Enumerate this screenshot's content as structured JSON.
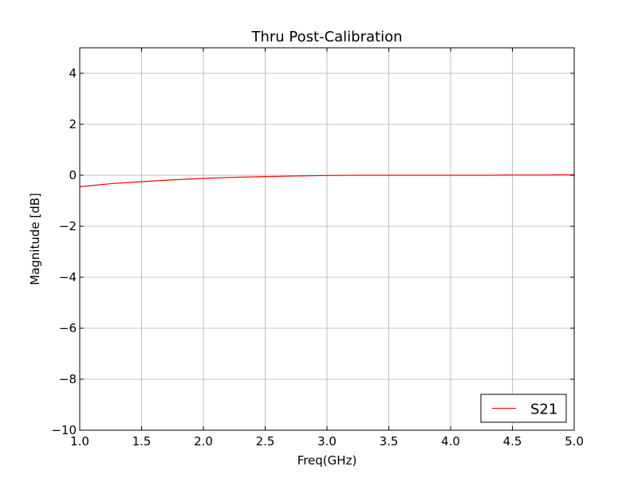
{
  "chart_data": {
    "type": "line",
    "title": "Thru Post-Calibration",
    "xlabel": "Freq(GHz)",
    "ylabel": "Magnitude [dB]",
    "xlim": [
      1.0,
      5.0
    ],
    "ylim": [
      -10,
      5
    ],
    "x_ticks": [
      1.0,
      1.5,
      2.0,
      2.5,
      3.0,
      3.5,
      4.0,
      4.5,
      5.0
    ],
    "x_tick_labels": [
      "1.0",
      "1.5",
      "2.0",
      "2.5",
      "3.0",
      "3.5",
      "4.0",
      "4.5",
      "5.0"
    ],
    "y_ticks": [
      -10,
      -8,
      -6,
      -4,
      -2,
      0,
      2,
      4
    ],
    "y_tick_labels": [
      "−10",
      "−8",
      "−6",
      "−4",
      "−2",
      "0",
      "2",
      "4"
    ],
    "grid": true,
    "legend_position": "bottom-right",
    "series": [
      {
        "name": "S21",
        "color": "#ff0000",
        "x": [
          1.0,
          1.25,
          1.5,
          1.75,
          2.0,
          2.25,
          2.5,
          2.75,
          3.0,
          3.25,
          3.5,
          3.75,
          4.0,
          4.25,
          4.5,
          4.75,
          5.0
        ],
        "y": [
          -0.45,
          -0.33,
          -0.25,
          -0.18,
          -0.12,
          -0.08,
          -0.05,
          -0.03,
          -0.01,
          0.0,
          0.0,
          0.0,
          0.0,
          0.0,
          0.01,
          0.01,
          0.02
        ]
      }
    ]
  }
}
